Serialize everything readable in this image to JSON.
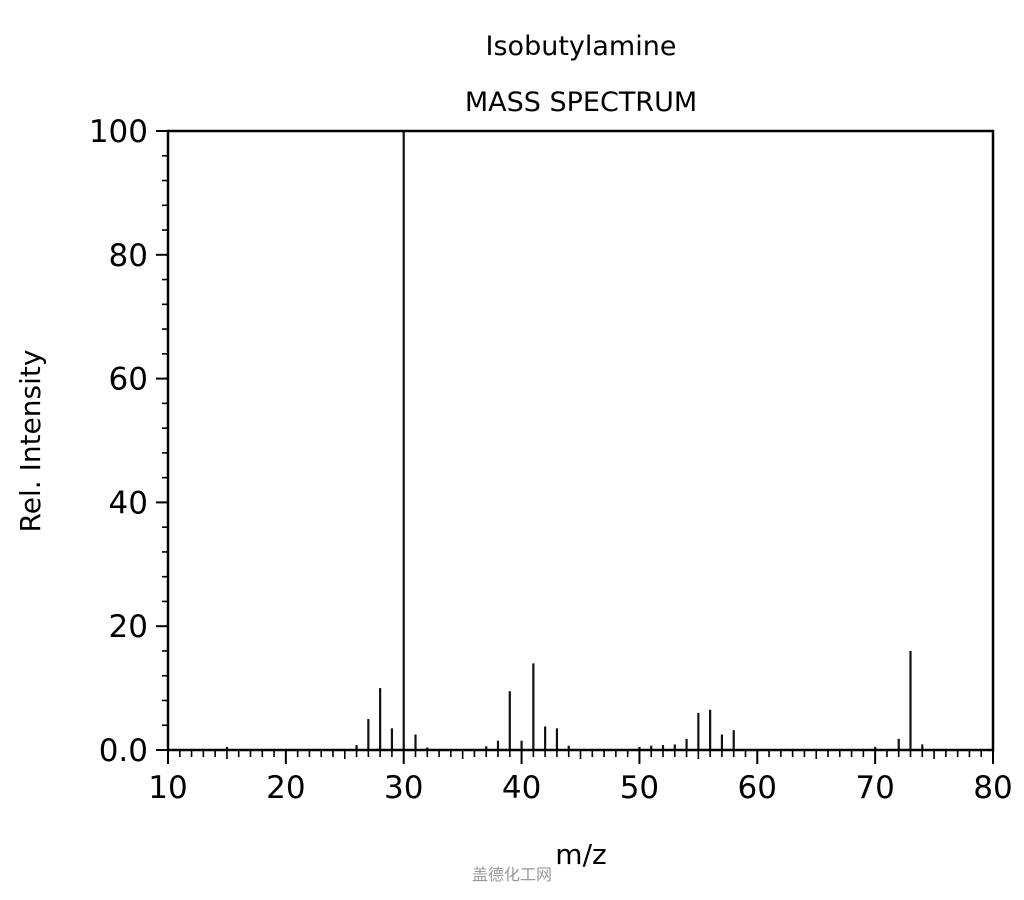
{
  "chart_data": {
    "type": "bar",
    "title": "Isobutylamine",
    "subtitle": "MASS SPECTRUM",
    "xlabel": "m/z",
    "ylabel": "Rel. Intensity",
    "xlim": [
      10,
      80
    ],
    "ylim": [
      0,
      100
    ],
    "x_ticks": [
      10,
      20,
      30,
      40,
      50,
      60,
      70,
      80
    ],
    "x_tick_labels": [
      "10",
      "20",
      "30",
      "40",
      "50",
      "60",
      "70",
      "80"
    ],
    "y_ticks": [
      0,
      20,
      40,
      60,
      80,
      100
    ],
    "y_tick_labels": [
      "0.0",
      "20",
      "40",
      "60",
      "80",
      "100"
    ],
    "grid": false,
    "legend": "none",
    "points": [
      {
        "mz": 15,
        "intensity": 0.5
      },
      {
        "mz": 26,
        "intensity": 0.8
      },
      {
        "mz": 27,
        "intensity": 5.0
      },
      {
        "mz": 28,
        "intensity": 10.0
      },
      {
        "mz": 29,
        "intensity": 3.5
      },
      {
        "mz": 30,
        "intensity": 100.0
      },
      {
        "mz": 31,
        "intensity": 2.5
      },
      {
        "mz": 32,
        "intensity": 0.4
      },
      {
        "mz": 37,
        "intensity": 0.6
      },
      {
        "mz": 38,
        "intensity": 1.5
      },
      {
        "mz": 39,
        "intensity": 9.5
      },
      {
        "mz": 40,
        "intensity": 1.5
      },
      {
        "mz": 41,
        "intensity": 14.0
      },
      {
        "mz": 42,
        "intensity": 3.8
      },
      {
        "mz": 43,
        "intensity": 3.5
      },
      {
        "mz": 44,
        "intensity": 0.7
      },
      {
        "mz": 50,
        "intensity": 0.5
      },
      {
        "mz": 51,
        "intensity": 0.7
      },
      {
        "mz": 52,
        "intensity": 0.8
      },
      {
        "mz": 53,
        "intensity": 0.9
      },
      {
        "mz": 54,
        "intensity": 1.8
      },
      {
        "mz": 55,
        "intensity": 6.0
      },
      {
        "mz": 56,
        "intensity": 6.5
      },
      {
        "mz": 57,
        "intensity": 2.5
      },
      {
        "mz": 58,
        "intensity": 3.2
      },
      {
        "mz": 70,
        "intensity": 0.5
      },
      {
        "mz": 72,
        "intensity": 1.8
      },
      {
        "mz": 73,
        "intensity": 16.0
      },
      {
        "mz": 74,
        "intensity": 0.9
      }
    ],
    "colors": {
      "bar": "#111111",
      "axis": "#000000"
    }
  },
  "watermark": {
    "text": "盖德化工网"
  }
}
